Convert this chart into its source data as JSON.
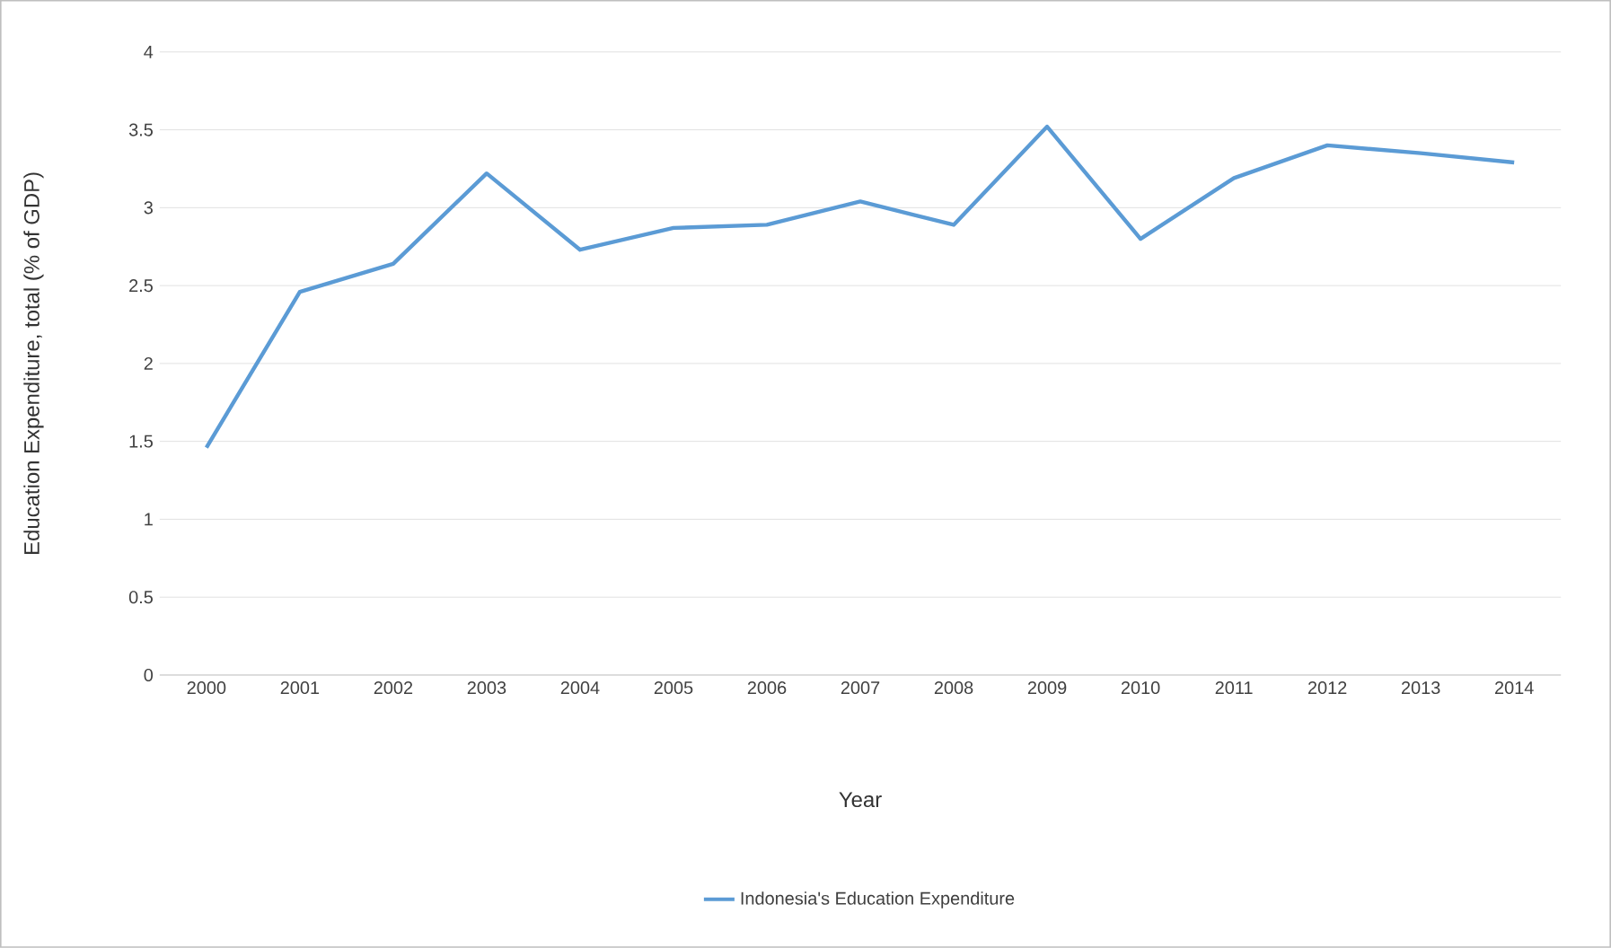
{
  "chart_data": {
    "type": "line",
    "xlabel": "Year",
    "ylabel": "Education Expenditure, total (% of GDP)",
    "categories": [
      "2000",
      "2001",
      "2002",
      "2003",
      "2004",
      "2005",
      "2006",
      "2007",
      "2008",
      "2009",
      "2010",
      "2011",
      "2012",
      "2013",
      "2014"
    ],
    "series": [
      {
        "name": "Indonesia's Education Expenditure",
        "color": "#5b9bd5",
        "values": [
          1.46,
          2.46,
          2.64,
          3.22,
          2.73,
          2.87,
          2.89,
          3.04,
          2.89,
          3.52,
          2.8,
          3.19,
          3.4,
          3.35,
          3.29
        ]
      }
    ],
    "ylim": [
      0,
      4
    ],
    "yticks": [
      0,
      0.5,
      1,
      1.5,
      2,
      2.5,
      3,
      3.5,
      4
    ],
    "grid": "y",
    "legend": "bottom",
    "marker": "none",
    "line_style": "solid"
  }
}
